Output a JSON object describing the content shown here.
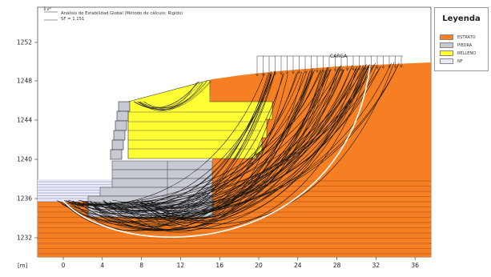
{
  "analysis": {
    "title": "Análisis de Estabilidad Global (Método de cálculo: Rígido)",
    "fs_text": "SF = 1.151"
  },
  "legend": {
    "title": "Leyenda",
    "items": [
      {
        "label": "ESTRATO",
        "color": "#f57f22"
      },
      {
        "label": "PIEDRA",
        "color": "#c7c9d3"
      },
      {
        "label": "RELLENO",
        "color": "#ffff33"
      },
      {
        "label": "NF",
        "color": "#e8eaf4"
      }
    ]
  },
  "load_label": "CARGA",
  "axes": {
    "unit_label": "[m]",
    "x_ticks": [
      "0",
      "4",
      "8",
      "12",
      "16",
      "20",
      "24",
      "28",
      "32",
      "36"
    ],
    "y_ticks": [
      "1232",
      "1236",
      "1240",
      "1244",
      "1248",
      "1252"
    ]
  },
  "colors": {
    "stratum": "#f57f22",
    "stone": "#c7c9d3",
    "fill": "#ffff33",
    "water": "#e8eaf4",
    "critical": "#ffffff"
  }
}
